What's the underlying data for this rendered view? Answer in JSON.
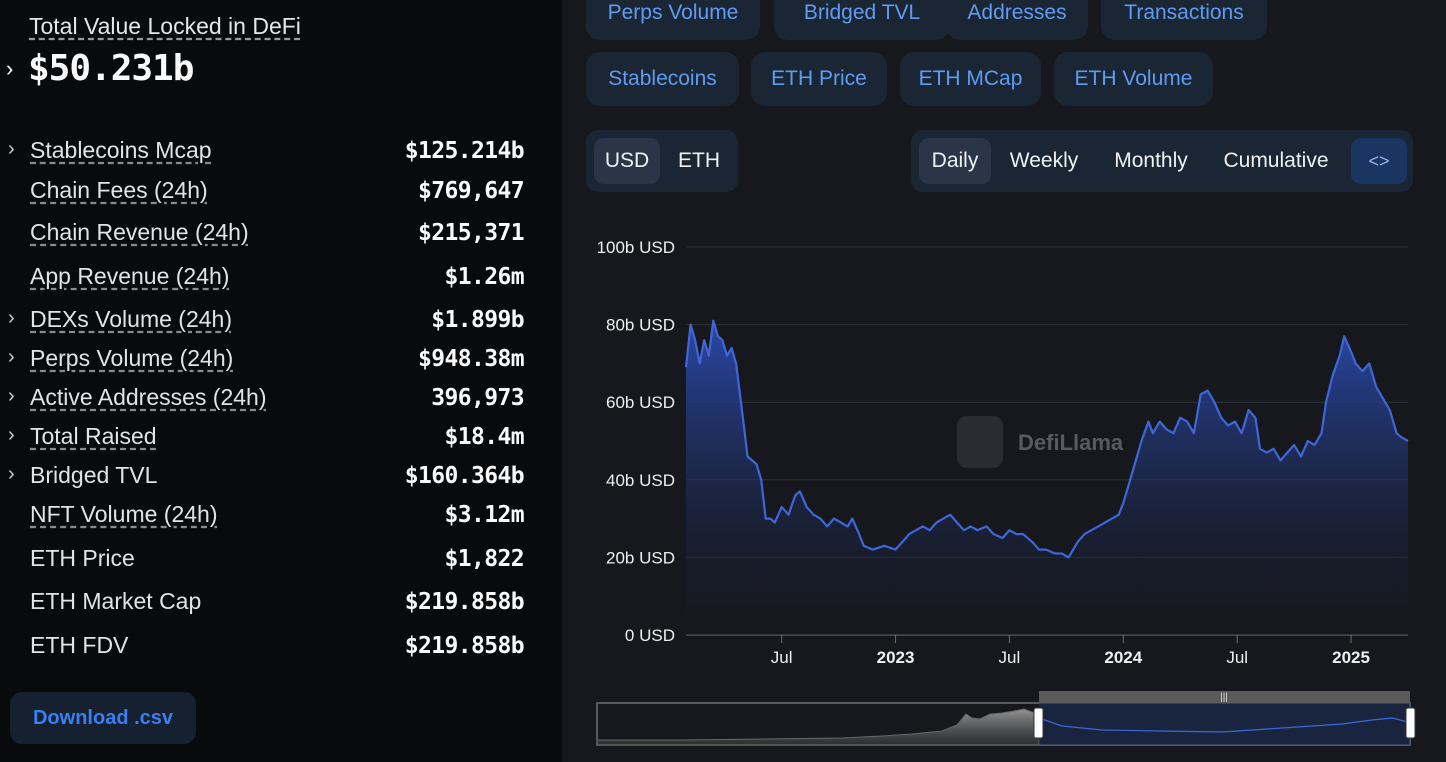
{
  "summary": {
    "tvl_label": "Total Value Locked in DeFi",
    "tvl_value": "$50.231b"
  },
  "metrics": [
    {
      "label": "Stablecoins Mcap",
      "value": "$125.214b",
      "chevron": true,
      "underline": true
    },
    {
      "label": "Chain Fees (24h)",
      "value": "$769,647",
      "chevron": false,
      "underline": true
    },
    {
      "label": "Chain Revenue (24h)",
      "value": "$215,371",
      "chevron": false,
      "underline": true
    },
    {
      "label": "App Revenue (24h)",
      "value": "$1.26m",
      "chevron": false,
      "underline": true
    },
    {
      "label": "DEXs Volume (24h)",
      "value": "$1.899b",
      "chevron": true,
      "underline": true
    },
    {
      "label": "Perps Volume (24h)",
      "value": "$948.38m",
      "chevron": true,
      "underline": true
    },
    {
      "label": "Active Addresses (24h)",
      "value": "396,973",
      "chevron": true,
      "underline": true
    },
    {
      "label": "Total Raised",
      "value": "$18.4m",
      "chevron": true,
      "underline": true
    },
    {
      "label": "Bridged TVL",
      "value": "$160.364b",
      "chevron": true,
      "underline": false
    },
    {
      "label": "NFT Volume (24h)",
      "value": "$3.12m",
      "chevron": false,
      "underline": true
    },
    {
      "label": "ETH Price",
      "value": "$1,822",
      "chevron": false,
      "underline": false
    },
    {
      "label": "ETH Market Cap",
      "value": "$219.858b",
      "chevron": false,
      "underline": false
    },
    {
      "label": "ETH FDV",
      "value": "$219.858b",
      "chevron": false,
      "underline": false
    }
  ],
  "download_label": "Download .csv",
  "metric_toggles_row1": [
    "Perps Volume",
    "Bridged TVL",
    "Addresses",
    "Transactions"
  ],
  "metric_toggles_row2": [
    "Stablecoins",
    "ETH Price",
    "ETH MCap",
    "ETH Volume"
  ],
  "denomination": {
    "options": [
      "USD",
      "ETH"
    ],
    "selected": "USD"
  },
  "period": {
    "options": [
      "Daily",
      "Weekly",
      "Monthly",
      "Cumulative"
    ],
    "selected": "Daily",
    "embed_icon": "code-brackets-icon"
  },
  "watermark": "DefiLlama",
  "colors": {
    "line": "#3f66d9",
    "accent": "#5e9cf2",
    "background": "#16181d"
  },
  "chart_data": {
    "type": "area",
    "title": "",
    "xlabel": "",
    "ylabel": "",
    "y_unit": "USD",
    "ylim": [
      0,
      100
    ],
    "yticks": [
      "0 USD",
      "20b USD",
      "40b USD",
      "60b USD",
      "80b USD",
      "100b USD"
    ],
    "xticks": [
      {
        "label": "Jul",
        "t": 2022.5,
        "bold": false
      },
      {
        "label": "2023",
        "t": 2023.0,
        "bold": true
      },
      {
        "label": "Jul",
        "t": 2023.5,
        "bold": false
      },
      {
        "label": "2024",
        "t": 2024.0,
        "bold": true
      },
      {
        "label": "Jul",
        "t": 2024.5,
        "bold": false
      },
      {
        "label": "2025",
        "t": 2025.0,
        "bold": true
      }
    ],
    "xlim": [
      2022.08,
      2025.25
    ],
    "series": [
      {
        "values_billion": [
          [
            2022.08,
            69
          ],
          [
            2022.1,
            80
          ],
          [
            2022.12,
            76
          ],
          [
            2022.14,
            70
          ],
          [
            2022.16,
            76
          ],
          [
            2022.18,
            72
          ],
          [
            2022.2,
            81
          ],
          [
            2022.22,
            77
          ],
          [
            2022.24,
            76
          ],
          [
            2022.26,
            72
          ],
          [
            2022.28,
            74
          ],
          [
            2022.3,
            70
          ],
          [
            2022.33,
            56
          ],
          [
            2022.35,
            46
          ],
          [
            2022.37,
            45
          ],
          [
            2022.39,
            44
          ],
          [
            2022.41,
            40
          ],
          [
            2022.43,
            30
          ],
          [
            2022.45,
            30
          ],
          [
            2022.47,
            29
          ],
          [
            2022.5,
            33
          ],
          [
            2022.53,
            31
          ],
          [
            2022.56,
            36
          ],
          [
            2022.58,
            37
          ],
          [
            2022.61,
            33
          ],
          [
            2022.64,
            31
          ],
          [
            2022.67,
            30
          ],
          [
            2022.7,
            28
          ],
          [
            2022.73,
            30
          ],
          [
            2022.76,
            29
          ],
          [
            2022.79,
            28
          ],
          [
            2022.81,
            30
          ],
          [
            2022.84,
            26
          ],
          [
            2022.86,
            23
          ],
          [
            2022.9,
            22
          ],
          [
            2022.95,
            23
          ],
          [
            2023.0,
            22
          ],
          [
            2023.03,
            24
          ],
          [
            2023.06,
            26
          ],
          [
            2023.09,
            27
          ],
          [
            2023.12,
            28
          ],
          [
            2023.15,
            27
          ],
          [
            2023.18,
            29
          ],
          [
            2023.21,
            30
          ],
          [
            2023.24,
            31
          ],
          [
            2023.27,
            29
          ],
          [
            2023.3,
            27
          ],
          [
            2023.33,
            28
          ],
          [
            2023.36,
            27
          ],
          [
            2023.4,
            28
          ],
          [
            2023.43,
            26
          ],
          [
            2023.47,
            25
          ],
          [
            2023.5,
            27
          ],
          [
            2023.53,
            26
          ],
          [
            2023.56,
            26
          ],
          [
            2023.6,
            24
          ],
          [
            2023.63,
            22
          ],
          [
            2023.66,
            22
          ],
          [
            2023.7,
            21
          ],
          [
            2023.73,
            21
          ],
          [
            2023.76,
            20
          ],
          [
            2023.78,
            22
          ],
          [
            2023.8,
            24
          ],
          [
            2023.83,
            26
          ],
          [
            2023.86,
            27
          ],
          [
            2023.89,
            28
          ],
          [
            2023.92,
            29
          ],
          [
            2023.95,
            30
          ],
          [
            2023.98,
            31
          ],
          [
            2024.0,
            34
          ],
          [
            2024.02,
            38
          ],
          [
            2024.05,
            44
          ],
          [
            2024.08,
            50
          ],
          [
            2024.11,
            55
          ],
          [
            2024.13,
            52
          ],
          [
            2024.16,
            55
          ],
          [
            2024.19,
            53
          ],
          [
            2024.22,
            52
          ],
          [
            2024.25,
            56
          ],
          [
            2024.28,
            55
          ],
          [
            2024.31,
            52
          ],
          [
            2024.34,
            62
          ],
          [
            2024.37,
            63
          ],
          [
            2024.4,
            60
          ],
          [
            2024.43,
            56
          ],
          [
            2024.46,
            54
          ],
          [
            2024.49,
            55
          ],
          [
            2024.52,
            52
          ],
          [
            2024.55,
            58
          ],
          [
            2024.58,
            56
          ],
          [
            2024.6,
            48
          ],
          [
            2024.63,
            47
          ],
          [
            2024.66,
            48
          ],
          [
            2024.69,
            45
          ],
          [
            2024.72,
            47
          ],
          [
            2024.75,
            49
          ],
          [
            2024.78,
            46
          ],
          [
            2024.81,
            50
          ],
          [
            2024.84,
            49
          ],
          [
            2024.87,
            52
          ],
          [
            2024.89,
            60
          ],
          [
            2024.92,
            67
          ],
          [
            2024.95,
            72
          ],
          [
            2024.97,
            77
          ],
          [
            2025.0,
            73
          ],
          [
            2025.02,
            70
          ],
          [
            2025.05,
            68
          ],
          [
            2025.08,
            70
          ],
          [
            2025.11,
            64
          ],
          [
            2025.14,
            61
          ],
          [
            2025.17,
            58
          ],
          [
            2025.2,
            52
          ],
          [
            2025.22,
            51
          ],
          [
            2025.25,
            50
          ]
        ]
      }
    ]
  }
}
